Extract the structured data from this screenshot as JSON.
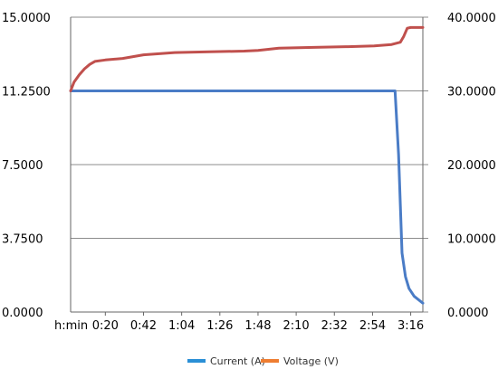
{
  "chart_data": {
    "type": "line",
    "title": "",
    "xlabel": "",
    "x_axis_prefix": "h:min",
    "x_ticks": [
      "0:20",
      "0:42",
      "1:04",
      "1:26",
      "1:48",
      "2:10",
      "2:32",
      "2:54",
      "3:16"
    ],
    "x_tick_minutes": [
      20,
      42,
      64,
      86,
      108,
      130,
      152,
      174,
      196
    ],
    "x_range_minutes": [
      0,
      203
    ],
    "y_left": {
      "ticks": [
        "0.0000",
        "3.7500",
        "7.5000",
        "11.2500",
        "15.0000"
      ],
      "range": [
        0,
        15
      ]
    },
    "y_right": {
      "ticks": [
        "0.0000",
        "10.0000",
        "20.0000",
        "30.0000",
        "40.0000"
      ],
      "range": [
        0,
        40
      ]
    },
    "grid": {
      "horizontal": true,
      "vertical": false
    },
    "legend_position": "bottom",
    "series": [
      {
        "name": "Current (A)",
        "axis": "left",
        "legend_color": "#2a8fd6",
        "line_color": "#4a7cc6",
        "x": [
          0,
          20,
          42,
          64,
          86,
          108,
          130,
          152,
          174,
          187,
          189,
          190,
          191,
          193,
          195,
          198,
          203
        ],
        "values": [
          11.25,
          11.25,
          11.25,
          11.25,
          11.25,
          11.25,
          11.25,
          11.25,
          11.25,
          11.25,
          8.0,
          5.5,
          3.0,
          1.8,
          1.2,
          0.8,
          0.45
        ]
      },
      {
        "name": "Voltage (V)",
        "axis": "right",
        "legend_color": "#ee7d31",
        "line_color": "#c0504d",
        "x": [
          0,
          2,
          5,
          8,
          11,
          14,
          20,
          30,
          42,
          60,
          80,
          100,
          108,
          120,
          140,
          160,
          175,
          185,
          190,
          192,
          194,
          196,
          203
        ],
        "values": [
          30.0,
          31.2,
          32.2,
          33.0,
          33.6,
          34.0,
          34.2,
          34.4,
          34.9,
          35.2,
          35.3,
          35.4,
          35.5,
          35.8,
          35.9,
          36.0,
          36.1,
          36.3,
          36.6,
          37.4,
          38.5,
          38.6,
          38.6
        ]
      }
    ]
  }
}
